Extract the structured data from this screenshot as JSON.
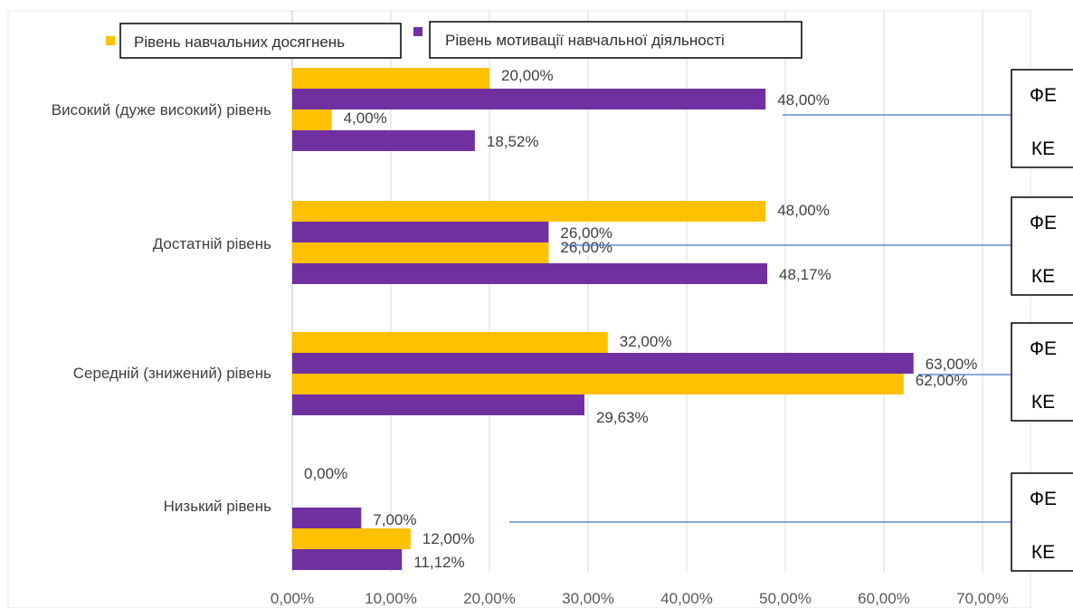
{
  "chart_data": {
    "type": "bar",
    "orientation": "horizontal",
    "title": "",
    "xlabel": "",
    "ylabel": "",
    "xlim": [
      0,
      70
    ],
    "x_ticks": [
      "0,00%",
      "10,00%",
      "20,00%",
      "30,00%",
      "40,00%",
      "50,00%",
      "60,00%",
      "70,00%"
    ],
    "grid": "vertical",
    "legend_position": "top",
    "colors": {
      "orange": "#FFC000",
      "purple": "#7030A0",
      "grid": "#D9D9D9",
      "connector": "#4472C4"
    },
    "legend": [
      {
        "label": "Рівень навчальних досягнень",
        "color": "#FFC000"
      },
      {
        "label": "Рівень мотивації навчальної діяльності",
        "color": "#7030A0"
      }
    ],
    "group_markers": [
      "ФЕ",
      "КЕ"
    ],
    "categories": [
      {
        "label": "Високий (дуже високий) рівень",
        "bars": [
          {
            "group": "ФЕ",
            "series": "Рівень навчальних досягнень",
            "color": "#FFC000",
            "value": 20.0,
            "label": "20,00%"
          },
          {
            "group": "ФЕ",
            "series": "Рівень мотивації навчальної діяльності",
            "color": "#7030A0",
            "value": 48.0,
            "label": "48,00%"
          },
          {
            "group": "КЕ",
            "series": "Рівень навчальних досягнень",
            "color": "#FFC000",
            "value": 4.0,
            "label": "4,00%"
          },
          {
            "group": "КЕ",
            "series": "Рівень мотивації навчальної діяльності",
            "color": "#7030A0",
            "value": 18.52,
            "label": "18,52%"
          }
        ]
      },
      {
        "label": "Достатній рівень",
        "bars": [
          {
            "group": "ФЕ",
            "series": "Рівень навчальних досягнень",
            "color": "#FFC000",
            "value": 48.0,
            "label": "48,00%"
          },
          {
            "group": "ФЕ",
            "series": "Рівень мотивації навчальної діяльності",
            "color": "#7030A0",
            "value": 26.0,
            "label": "26,00%"
          },
          {
            "group": "КЕ",
            "series": "Рівень навчальних досягнень",
            "color": "#FFC000",
            "value": 26.0,
            "label": "26,00%"
          },
          {
            "group": "КЕ",
            "series": "Рівень мотивації навчальної діяльності",
            "color": "#7030A0",
            "value": 48.17,
            "label": "48,17%"
          }
        ]
      },
      {
        "label": "Середній (знижений) рівень",
        "bars": [
          {
            "group": "ФЕ",
            "series": "Рівень навчальних досягнень",
            "color": "#FFC000",
            "value": 32.0,
            "label": "32,00%"
          },
          {
            "group": "ФЕ",
            "series": "Рівень мотивації навчальної діяльності",
            "color": "#7030A0",
            "value": 63.0,
            "label": "63,00%"
          },
          {
            "group": "КЕ",
            "series": "Рівень навчальних досягнень",
            "color": "#FFC000",
            "value": 62.0,
            "label": "62,00%"
          },
          {
            "group": "КЕ",
            "series": "Рівень мотивації навчальної діяльності",
            "color": "#7030A0",
            "value": 29.63,
            "label": "29,63%"
          }
        ]
      },
      {
        "label": "Низький рівень",
        "bars": [
          {
            "group": "ФЕ",
            "series": "Рівень навчальних досягнень",
            "color": "#FFC000",
            "value": 0.0,
            "label": "0,00%"
          },
          {
            "group": "ФЕ",
            "series": "Рівень мотивації навчальної діяльності",
            "color": "#7030A0",
            "value": 7.0,
            "label": "7,00%"
          },
          {
            "group": "КЕ",
            "series": "Рівень навчальних досягнень",
            "color": "#FFC000",
            "value": 12.0,
            "label": "12,00%"
          },
          {
            "group": "КЕ",
            "series": "Рівень мотивації навчальної діяльності",
            "color": "#7030A0",
            "value": 11.12,
            "label": "11,12%"
          }
        ]
      }
    ]
  }
}
